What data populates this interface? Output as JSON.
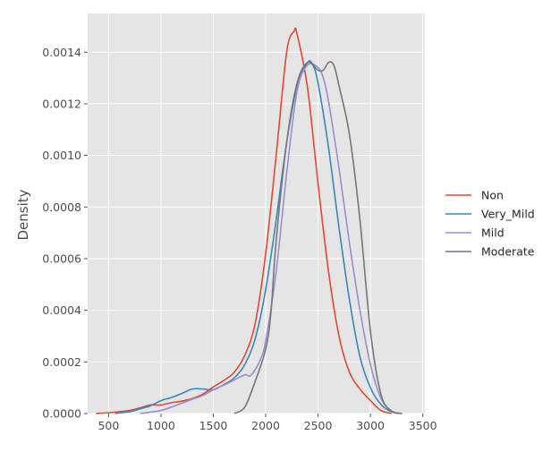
{
  "chart_data": {
    "type": "line",
    "title": "",
    "xlabel": "",
    "ylabel": "Density",
    "xlim": [
      300,
      3520
    ],
    "ylim": [
      0,
      0.00155
    ],
    "xticks": [
      500,
      1000,
      1500,
      2000,
      2500,
      3000,
      3500
    ],
    "yticks": [
      0,
      0.0002,
      0.0004,
      0.0006,
      0.0008,
      0.001,
      0.0012,
      0.0014
    ],
    "xtick_labels": [
      "500",
      "1000",
      "1500",
      "2000",
      "2500",
      "3000",
      "3500"
    ],
    "ytick_labels": [
      "0.0000",
      "0.0002",
      "0.0004",
      "0.0006",
      "0.0008",
      "0.0010",
      "0.0012",
      "0.0014"
    ],
    "grid": true,
    "legend_position": "right",
    "series": [
      {
        "name": "Non",
        "color": "#e24a33",
        "points": [
          [
            380,
            0
          ],
          [
            500,
            3e-06
          ],
          [
            600,
            7e-06
          ],
          [
            700,
            1.2e-05
          ],
          [
            800,
            2.2e-05
          ],
          [
            900,
            3.3e-05
          ],
          [
            1000,
            3.3e-05
          ],
          [
            1100,
            4.2e-05
          ],
          [
            1200,
            4.8e-05
          ],
          [
            1300,
            5.8e-05
          ],
          [
            1400,
            7.5e-05
          ],
          [
            1500,
            0.000103
          ],
          [
            1600,
            0.000128
          ],
          [
            1700,
            0.00016
          ],
          [
            1800,
            0.000225
          ],
          [
            1900,
            0.00035
          ],
          [
            2000,
            0.00062
          ],
          [
            2100,
            0.001
          ],
          [
            2200,
            0.0014
          ],
          [
            2270,
            0.00148
          ],
          [
            2300,
            0.00147
          ],
          [
            2400,
            0.00126
          ],
          [
            2500,
            0.00089
          ],
          [
            2600,
            0.00055
          ],
          [
            2700,
            0.0003
          ],
          [
            2800,
            0.00016
          ],
          [
            2900,
            9.5e-05
          ],
          [
            3000,
            5e-05
          ],
          [
            3100,
            1.2e-05
          ],
          [
            3200,
            0
          ]
        ]
      },
      {
        "name": "Very_Mild",
        "color": "#348abd",
        "points": [
          [
            560,
            0
          ],
          [
            700,
            7e-06
          ],
          [
            800,
            1.8e-05
          ],
          [
            900,
            3e-05
          ],
          [
            1000,
            5e-05
          ],
          [
            1100,
            6.2e-05
          ],
          [
            1200,
            7.8e-05
          ],
          [
            1300,
            9.5e-05
          ],
          [
            1400,
            9.5e-05
          ],
          [
            1500,
            9.2e-05
          ],
          [
            1600,
            0.000112
          ],
          [
            1700,
            0.000138
          ],
          [
            1800,
            0.00019
          ],
          [
            1900,
            0.00029
          ],
          [
            2000,
            0.00048
          ],
          [
            2100,
            0.00075
          ],
          [
            2200,
            0.00105
          ],
          [
            2300,
            0.00127
          ],
          [
            2400,
            0.00136
          ],
          [
            2450,
            0.00135
          ],
          [
            2500,
            0.00128
          ],
          [
            2600,
            0.00103
          ],
          [
            2700,
            0.00072
          ],
          [
            2800,
            0.00044
          ],
          [
            2900,
            0.00022
          ],
          [
            3000,
            0.0001
          ],
          [
            3100,
            3.5e-05
          ],
          [
            3200,
            7e-06
          ],
          [
            3300,
            0
          ]
        ]
      },
      {
        "name": "Mild",
        "color": "#988ed5",
        "points": [
          [
            800,
            0
          ],
          [
            900,
            5e-06
          ],
          [
            1000,
            1.2e-05
          ],
          [
            1100,
            2.5e-05
          ],
          [
            1200,
            4e-05
          ],
          [
            1300,
            5.5e-05
          ],
          [
            1400,
            7e-05
          ],
          [
            1500,
            9.2e-05
          ],
          [
            1600,
            0.00011
          ],
          [
            1700,
            0.00013
          ],
          [
            1800,
            0.00015
          ],
          [
            1850,
            0.000145
          ],
          [
            1900,
            0.00017
          ],
          [
            1950,
            0.00021
          ],
          [
            2000,
            0.00028
          ],
          [
            2100,
            0.00055
          ],
          [
            2200,
            0.00093
          ],
          [
            2300,
            0.00125
          ],
          [
            2400,
            0.00135
          ],
          [
            2500,
            0.00134
          ],
          [
            2550,
            0.0013
          ],
          [
            2600,
            0.00121
          ],
          [
            2700,
            0.00095
          ],
          [
            2800,
            0.00066
          ],
          [
            2900,
            0.0004
          ],
          [
            3000,
            0.00019
          ],
          [
            3100,
            6e-05
          ],
          [
            3200,
            1e-05
          ],
          [
            3300,
            0
          ]
        ]
      },
      {
        "name": "Moderate",
        "color": "#777777",
        "points": [
          [
            1700,
            0
          ],
          [
            1800,
            2.5e-05
          ],
          [
            1900,
            0.000125
          ],
          [
            2000,
            0.00025
          ],
          [
            2050,
            0.00039
          ],
          [
            2100,
            0.00067
          ],
          [
            2200,
            0.00105
          ],
          [
            2300,
            0.00128
          ],
          [
            2400,
            0.00136
          ],
          [
            2500,
            0.00133
          ],
          [
            2550,
            0.00133
          ],
          [
            2600,
            0.00136
          ],
          [
            2650,
            0.00135
          ],
          [
            2700,
            0.00127
          ],
          [
            2800,
            0.00108
          ],
          [
            2900,
            0.00075
          ],
          [
            3000,
            0.00032
          ],
          [
            3100,
            7.5e-05
          ],
          [
            3200,
            1e-05
          ],
          [
            3300,
            0
          ]
        ]
      }
    ]
  }
}
